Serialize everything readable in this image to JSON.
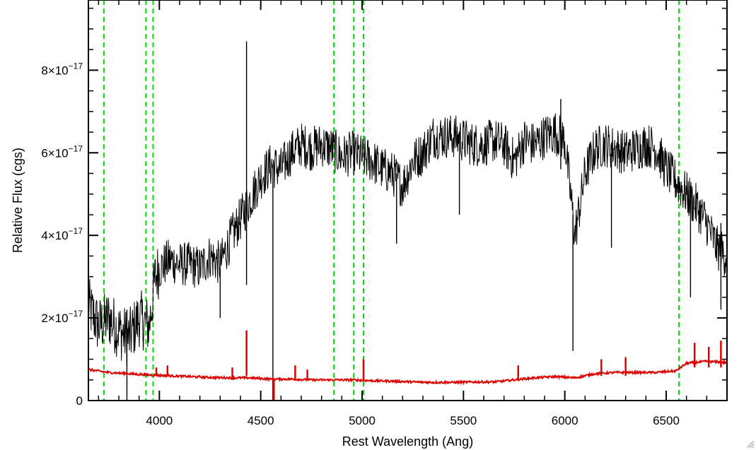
{
  "chart_data": {
    "type": "line",
    "xlabel": "Rest Wavelength (Ang)",
    "ylabel": "Relative Flux (cgs)",
    "xlim": [
      3650,
      6800
    ],
    "ylim": [
      0,
      9.7e-17
    ],
    "x_ticks": [
      4000,
      4500,
      5000,
      5500,
      6000,
      6500
    ],
    "x_tick_labels": [
      "4000",
      "4500",
      "5000",
      "5500",
      "6000",
      "6500"
    ],
    "y_ticks": [
      0,
      2e-17,
      4e-17,
      6e-17,
      8e-17
    ],
    "y_tick_labels": [
      {
        "base": "0",
        "exp": ""
      },
      {
        "base": "2×10",
        "exp": "−17"
      },
      {
        "base": "4×10",
        "exp": "−17"
      },
      {
        "base": "6×10",
        "exp": "−17"
      },
      {
        "base": "8×10",
        "exp": "−17"
      }
    ],
    "grid": false,
    "series": [
      {
        "color": "#000000",
        "points": [
          [
            3650,
            2.3e-17
          ],
          [
            3700,
            1.8e-17
          ],
          [
            3750,
            2e-17
          ],
          [
            3800,
            1.7e-17
          ],
          [
            3850,
            1.5e-17
          ],
          [
            3900,
            2e-17
          ],
          [
            3950,
            1.8e-17
          ],
          [
            3980,
            3e-17
          ],
          [
            4000,
            3.2e-17
          ],
          [
            4050,
            3.4e-17
          ],
          [
            4100,
            3.3e-17
          ],
          [
            4150,
            3.3e-17
          ],
          [
            4200,
            3.2e-17
          ],
          [
            4250,
            3.5e-17
          ],
          [
            4300,
            3.3e-17
          ],
          [
            4350,
            3.9e-17
          ],
          [
            4400,
            4.4e-17
          ],
          [
            4450,
            4.9e-17
          ],
          [
            4500,
            5.4e-17
          ],
          [
            4550,
            5.7e-17
          ],
          [
            4600,
            5.6e-17
          ],
          [
            4650,
            6e-17
          ],
          [
            4700,
            6.2e-17
          ],
          [
            4750,
            6.1e-17
          ],
          [
            4800,
            6.2e-17
          ],
          [
            4850,
            6.1e-17
          ],
          [
            4900,
            5.9e-17
          ],
          [
            4950,
            6e-17
          ],
          [
            5000,
            5.9e-17
          ],
          [
            5050,
            5.8e-17
          ],
          [
            5100,
            5.6e-17
          ],
          [
            5150,
            5.5e-17
          ],
          [
            5200,
            5.2e-17
          ],
          [
            5250,
            5.8e-17
          ],
          [
            5300,
            6e-17
          ],
          [
            5350,
            6.4e-17
          ],
          [
            5400,
            6.4e-17
          ],
          [
            5450,
            6.4e-17
          ],
          [
            5500,
            6.3e-17
          ],
          [
            5550,
            6.2e-17
          ],
          [
            5600,
            6.2e-17
          ],
          [
            5650,
            6.3e-17
          ],
          [
            5700,
            6.2e-17
          ],
          [
            5750,
            5.8e-17
          ],
          [
            5800,
            6.3e-17
          ],
          [
            5850,
            6.2e-17
          ],
          [
            5900,
            6.4e-17
          ],
          [
            5950,
            6.5e-17
          ],
          [
            6000,
            6.3e-17
          ],
          [
            6050,
            4e-17
          ],
          [
            6100,
            5.5e-17
          ],
          [
            6150,
            6.1e-17
          ],
          [
            6200,
            6.2e-17
          ],
          [
            6250,
            6.1e-17
          ],
          [
            6300,
            6e-17
          ],
          [
            6350,
            6.1e-17
          ],
          [
            6400,
            6.2e-17
          ],
          [
            6450,
            6.1e-17
          ],
          [
            6500,
            5.6e-17
          ],
          [
            6550,
            5.3e-17
          ],
          [
            6600,
            5e-17
          ],
          [
            6650,
            4.7e-17
          ],
          [
            6700,
            4.3e-17
          ],
          [
            6750,
            3.7e-17
          ],
          [
            6800,
            3.5e-17
          ]
        ],
        "spikes": [
          {
            "x": 4430,
            "min": 2.8e-17,
            "max": 8.7e-17
          },
          {
            "x": 4560,
            "min": 0.0,
            "max": 5.7e-17
          },
          {
            "x": 4300,
            "min": 2e-17,
            "max": 3.2e-17
          },
          {
            "x": 5170,
            "min": 3.8e-17,
            "max": 5.5e-17
          },
          {
            "x": 6040,
            "min": 1.2e-17,
            "max": 4.5e-17
          },
          {
            "x": 6230,
            "min": 3.7e-17,
            "max": 6e-17
          },
          {
            "x": 5980,
            "min": 5.6e-17,
            "max": 7.3e-17
          },
          {
            "x": 5480,
            "min": 4.5e-17,
            "max": 6.3e-17
          },
          {
            "x": 6620,
            "min": 2.5e-17,
            "max": 5.2e-17
          },
          {
            "x": 6770,
            "min": 2.2e-17,
            "max": 4.3e-17
          },
          {
            "x": 3840,
            "min": 0.0,
            "max": 2.2e-17
          }
        ]
      },
      {
        "color": "#e00000",
        "points": [
          [
            3650,
            7.5e-18
          ],
          [
            3750,
            6.8e-18
          ],
          [
            3850,
            6.5e-18
          ],
          [
            3950,
            6.2e-18
          ],
          [
            4050,
            6e-18
          ],
          [
            4150,
            5.8e-18
          ],
          [
            4250,
            5.6e-18
          ],
          [
            4350,
            5.5e-18
          ],
          [
            4450,
            5.5e-18
          ],
          [
            4550,
            5.2e-18
          ],
          [
            4650,
            5.2e-18
          ],
          [
            4750,
            5e-18
          ],
          [
            4850,
            5e-18
          ],
          [
            4950,
            5e-18
          ],
          [
            5050,
            4.8e-18
          ],
          [
            5150,
            4.7e-18
          ],
          [
            5250,
            4.5e-18
          ],
          [
            5350,
            4.4e-18
          ],
          [
            5450,
            4.4e-18
          ],
          [
            5550,
            4.5e-18
          ],
          [
            5650,
            4.5e-18
          ],
          [
            5750,
            5e-18
          ],
          [
            5850,
            5.5e-18
          ],
          [
            5950,
            5.8e-18
          ],
          [
            6050,
            5.5e-18
          ],
          [
            6150,
            6.5e-18
          ],
          [
            6250,
            6.8e-18
          ],
          [
            6350,
            6.8e-18
          ],
          [
            6450,
            6.8e-18
          ],
          [
            6550,
            7.2e-18
          ],
          [
            6600,
            9e-18
          ],
          [
            6700,
            9.5e-18
          ],
          [
            6800,
            9.2e-18
          ]
        ],
        "spikes": [
          {
            "x": 4430,
            "min": 6e-18,
            "max": 1.7e-17
          },
          {
            "x": 4565,
            "min": -2e-18,
            "max": 5e-18
          },
          {
            "x": 4360,
            "min": 5e-18,
            "max": 8e-18
          },
          {
            "x": 4670,
            "min": 5e-18,
            "max": 8.5e-18
          },
          {
            "x": 4730,
            "min": 5e-18,
            "max": 7.5e-18
          },
          {
            "x": 5007,
            "min": 5e-18,
            "max": 1e-17
          },
          {
            "x": 4040,
            "min": 6e-18,
            "max": 8.5e-18
          },
          {
            "x": 3985,
            "min": 6e-18,
            "max": 8e-18
          },
          {
            "x": 6640,
            "min": 8e-18,
            "max": 1.4e-17
          },
          {
            "x": 6710,
            "min": 8e-18,
            "max": 1.3e-17
          },
          {
            "x": 6770,
            "min": 8e-18,
            "max": 1.45e-17
          },
          {
            "x": 6180,
            "min": 6e-18,
            "max": 1e-17
          },
          {
            "x": 6300,
            "min": 6e-18,
            "max": 1.05e-17
          },
          {
            "x": 5770,
            "min": 5e-18,
            "max": 8.5e-18
          }
        ]
      }
    ],
    "vlines": {
      "color": "#00dd00",
      "style": "dashed",
      "x": [
        3727,
        3934,
        3969,
        4861,
        4959,
        5007,
        6563
      ]
    }
  }
}
